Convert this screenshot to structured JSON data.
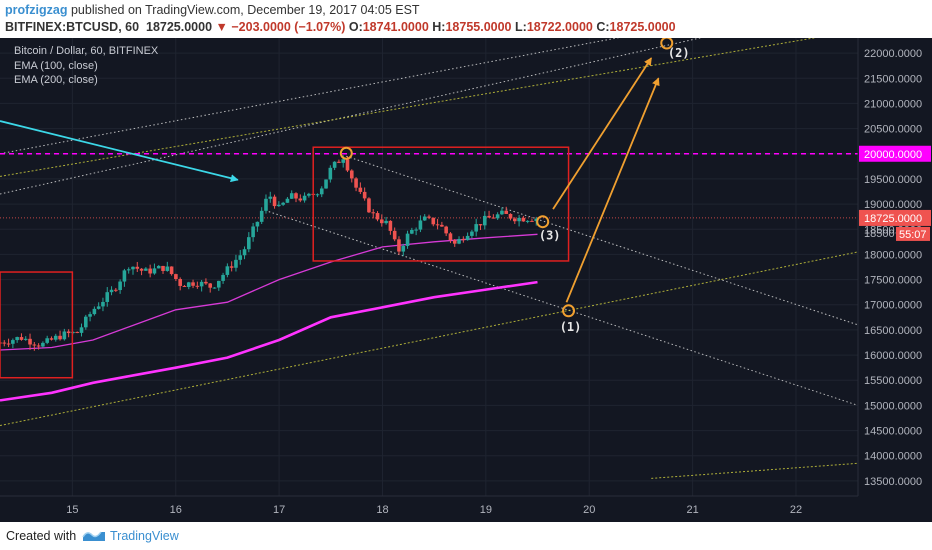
{
  "header": {
    "author": "profzigzag",
    "published_text": " published on TradingView.com, December 19, 2017 04:05 EST",
    "symbol_line": "BITFINEX:BTCUSD, 60",
    "last_value": "18725.0000",
    "change_text": "▼ −203.0000 (−1.07%)",
    "ohlc": [
      {
        "k": "O:",
        "v": "18741.0000"
      },
      {
        "k": "H:",
        "v": "18755.0000"
      },
      {
        "k": "L:",
        "v": "18722.0000"
      },
      {
        "k": "C:",
        "v": "18725.0000"
      }
    ]
  },
  "legend": {
    "title": "Bitcoin / Dollar, 60, BITFINEX",
    "ema100": "EMA (100, close)",
    "ema200": "EMA (200, close)"
  },
  "footer": {
    "created_with": "Created with",
    "brand": "TradingView"
  },
  "colors": {
    "background": "#131722",
    "up": "#26a69a",
    "down": "#ef5350",
    "ema100": "#d63ad6",
    "ema200": "#ff33ff",
    "level_line": "#ff00ff",
    "annotation": "#f0a030",
    "box": "#e02020",
    "cyan_arrow": "#3cd8e8",
    "channel": "#d8d8d8",
    "yellow_dotted": "#c8c83c"
  },
  "chart_data": {
    "type": "candlestick",
    "interval": "60",
    "y_axis": {
      "min": 13200,
      "max": 22300,
      "ticks": [
        13500,
        14000,
        14500,
        15000,
        15500,
        16000,
        16500,
        17000,
        17500,
        18000,
        18500,
        19000,
        19500,
        20000,
        20500,
        21000,
        21500,
        22000
      ],
      "tick_labels": [
        "13500.0000",
        "14000.0000",
        "14500.0000",
        "15000.0000",
        "15500.0000",
        "16000.0000",
        "16500.0000",
        "17000.0000",
        "17500.0000",
        "18000.0000",
        "18500.0000",
        "19000.0000",
        "19500.0000",
        "20000.0000",
        "20500.0000",
        "21000.0000",
        "21500.0000",
        "22000.0000"
      ]
    },
    "x_axis": {
      "min": 14.3,
      "max": 22.6,
      "ticks": [
        15,
        16,
        17,
        18,
        19,
        20,
        21,
        22
      ],
      "tick_labels": [
        "15",
        "16",
        "17",
        "18",
        "19",
        "20",
        "21",
        "22"
      ]
    },
    "price_badge": {
      "value": 18725,
      "label": "18725.0000",
      "countdown": "55:07"
    },
    "level_badge": {
      "value": 20000,
      "label": "20000.0000"
    },
    "partial_label": {
      "value": 18500,
      "label": "18500"
    },
    "price_path": [
      [
        14.3,
        16250
      ],
      [
        14.5,
        16350
      ],
      [
        14.7,
        16200
      ],
      [
        14.9,
        16400
      ],
      [
        15.05,
        16450
      ],
      [
        15.2,
        16900
      ],
      [
        15.4,
        17300
      ],
      [
        15.55,
        17800
      ],
      [
        15.7,
        17650
      ],
      [
        15.9,
        17750
      ],
      [
        16.05,
        17400
      ],
      [
        16.2,
        17450
      ],
      [
        16.35,
        17350
      ],
      [
        16.5,
        17700
      ],
      [
        16.65,
        18050
      ],
      [
        16.8,
        18700
      ],
      [
        16.9,
        19200
      ],
      [
        17.0,
        18900
      ],
      [
        17.1,
        19150
      ],
      [
        17.25,
        19100
      ],
      [
        17.4,
        19300
      ],
      [
        17.5,
        19700
      ],
      [
        17.62,
        19950
      ],
      [
        17.75,
        19300
      ],
      [
        17.9,
        18800
      ],
      [
        18.05,
        18600
      ],
      [
        18.15,
        18050
      ],
      [
        18.25,
        18400
      ],
      [
        18.4,
        18700
      ],
      [
        18.55,
        18600
      ],
      [
        18.7,
        18200
      ],
      [
        18.85,
        18500
      ],
      [
        19.0,
        18700
      ],
      [
        19.15,
        18800
      ],
      [
        19.3,
        18720
      ],
      [
        19.5,
        18725
      ]
    ],
    "ema100": [
      [
        14.3,
        16100
      ],
      [
        14.8,
        16150
      ],
      [
        15.2,
        16300
      ],
      [
        15.6,
        16600
      ],
      [
        16.0,
        16900
      ],
      [
        16.5,
        17050
      ],
      [
        17.0,
        17500
      ],
      [
        17.5,
        17850
      ],
      [
        18.0,
        18150
      ],
      [
        18.5,
        18250
      ],
      [
        19.0,
        18330
      ],
      [
        19.5,
        18400
      ]
    ],
    "ema200": [
      [
        14.3,
        15100
      ],
      [
        14.8,
        15250
      ],
      [
        15.2,
        15450
      ],
      [
        15.6,
        15600
      ],
      [
        16.0,
        15750
      ],
      [
        16.5,
        15950
      ],
      [
        17.0,
        16300
      ],
      [
        17.5,
        16750
      ],
      [
        18.0,
        16950
      ],
      [
        18.5,
        17150
      ],
      [
        19.0,
        17300
      ],
      [
        19.5,
        17450
      ]
    ],
    "horizontal_lines": [
      {
        "name": "20000 level",
        "value": 20000,
        "style": "dashed"
      },
      {
        "name": "last price",
        "value": 18725,
        "style": "dotted"
      }
    ],
    "trend_lines": [
      {
        "name": "channel-upper",
        "points": [
          [
            14.3,
            19200
          ],
          [
            22.6,
            23000
          ]
        ]
      },
      {
        "name": "channel-upper-2",
        "points": [
          [
            14.3,
            20000
          ],
          [
            22.6,
            23200
          ]
        ]
      },
      {
        "name": "channel-lower",
        "points": [
          [
            16.9,
            18850
          ],
          [
            22.6,
            15000
          ]
        ]
      },
      {
        "name": "triangle-upper",
        "points": [
          [
            17.65,
            19950
          ],
          [
            22.6,
            16600
          ]
        ]
      },
      {
        "name": "yellow-upper",
        "points": [
          [
            14.3,
            19550
          ],
          [
            22.6,
            22450
          ]
        ]
      },
      {
        "name": "yellow-lower",
        "points": [
          [
            14.3,
            14600
          ],
          [
            22.6,
            18050
          ]
        ]
      },
      {
        "name": "yellow-bottom",
        "points": [
          [
            20.6,
            13550
          ],
          [
            22.6,
            13850
          ]
        ]
      }
    ],
    "boxes": [
      {
        "x0": 14.3,
        "x1": 15.0,
        "y0": 15550,
        "y1": 17650
      },
      {
        "x0": 17.33,
        "x1": 19.8,
        "y0": 17870,
        "y1": 20130
      }
    ],
    "annotations": [
      {
        "label": "(1)",
        "x": 19.8,
        "y": 16880,
        "circle": true
      },
      {
        "label": "(2)",
        "x": 20.75,
        "y": 22200,
        "circle": true
      },
      {
        "label": "(3)",
        "x": 19.55,
        "y": 18650,
        "circle": true
      },
      {
        "label": "",
        "x": 17.65,
        "y": 20010,
        "circle": true
      }
    ],
    "arrows": [
      {
        "from": [
          19.65,
          18900
        ],
        "to": [
          20.6,
          21900
        ],
        "color": "annotation"
      },
      {
        "from": [
          19.78,
          17050
        ],
        "to": [
          20.67,
          21500
        ],
        "color": "annotation"
      },
      {
        "from": [
          14.3,
          20650
        ],
        "to": [
          16.6,
          19480
        ],
        "color": "cyan_arrow"
      }
    ]
  }
}
